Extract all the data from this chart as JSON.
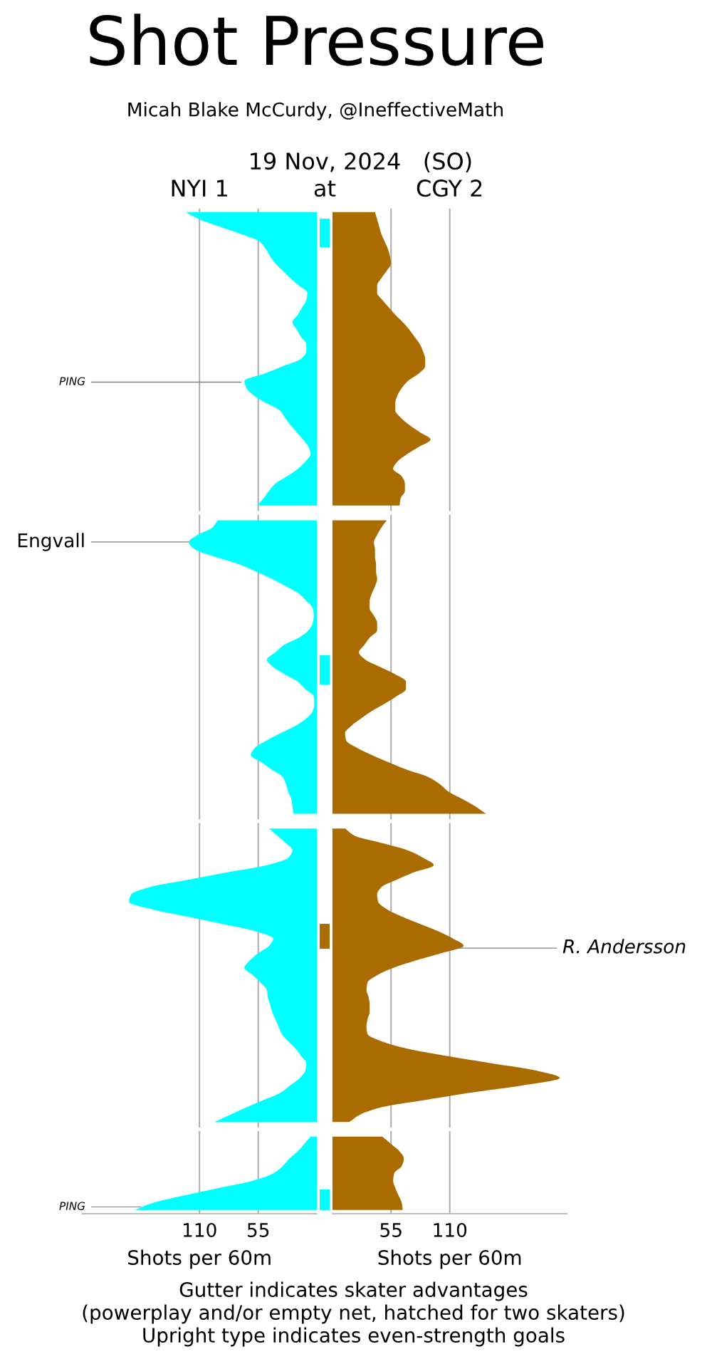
{
  "chart_data": [
    {
      "type": "area",
      "orientation": "horizontal",
      "title": "Shot Pressure",
      "subtitle": "Micah Blake McCurdy, @IneffectiveMath",
      "xlabel": "Shots per 60m",
      "categories": [
        null,
        null,
        null,
        null,
        null,
        null,
        null,
        null,
        null,
        null,
        null,
        null,
        null,
        null,
        null,
        null,
        null,
        null,
        null,
        null,
        null,
        null,
        null,
        null,
        null,
        null,
        null,
        null,
        null,
        null,
        null,
        null,
        null,
        null,
        null,
        null,
        null,
        null,
        null,
        null,
        null,
        null,
        null,
        null,
        null,
        null,
        null,
        null,
        null,
        null,
        null,
        null,
        null,
        null,
        null,
        null,
        null,
        null,
        null,
        null,
        null,
        null,
        null,
        null,
        null,
        null,
        null,
        null,
        null,
        null,
        null,
        null,
        null,
        null,
        null,
        null,
        null,
        null,
        null,
        null,
        null,
        null,
        null,
        null,
        null,
        null,
        null,
        null,
        null,
        null,
        null,
        null,
        null,
        null,
        null,
        null,
        null,
        null,
        null,
        null,
        null,
        null,
        null,
        null,
        null,
        null,
        null,
        null,
        null,
        null,
        null,
        null,
        null,
        null,
        null,
        null,
        null,
        null,
        null,
        null,
        null,
        null,
        null,
        null,
        null,
        null,
        null,
        null,
        null,
        null,
        null,
        null,
        null,
        null,
        null,
        null,
        null
      ],
      "series": [
        {
          "name": "NYI 1",
          "color": "#00ffff",
          "values": [
            123,
            110,
            91,
            71,
            54,
            48,
            44,
            39,
            32,
            25,
            17,
            9,
            10,
            14,
            18,
            23,
            19,
            15,
            10,
            10,
            15,
            32,
            49,
            68,
            66,
            59,
            48,
            35,
            30,
            25,
            19,
            13,
            8,
            6,
            11,
            18,
            28,
            39,
            45,
            50,
            56,
            null,
            93,
            98,
            112,
            120,
            114,
            95,
            73,
            57,
            42,
            29,
            17,
            10,
            4,
            3,
            4,
            8,
            17,
            31,
            39,
            47,
            41,
            30,
            18,
            11,
            3,
            2.5,
            4,
            10,
            20,
            34,
            47,
            58,
            62,
            52,
            42,
            32,
            29,
            27,
            24,
            23,
            22,
            null,
            45,
            37,
            29,
            23,
            27,
            47,
            85,
            121,
            157,
            174,
            176,
            155,
            122,
            89,
            58,
            41,
            45,
            55,
            63,
            68,
            60,
            53,
            47,
            46,
            44,
            42,
            39,
            36,
            33,
            27,
            20,
            15,
            10,
            11,
            16,
            25,
            34,
            50,
            66,
            81,
            96,
            null,
            6,
            12,
            18,
            26,
            32,
            41,
            60,
            92,
            124,
            153,
            171
          ]
        }
      ],
      "xlim": [
        220,
        0
      ],
      "xticks": [
        110,
        55
      ],
      "tick_labels": "x",
      "grid": "x",
      "annotations": [
        {
          "text": "PING",
          "x": 71
        },
        {
          "text": "Engvall",
          "x": 120
        },
        {
          "text": "PING",
          "x": 165
        },
        "19 Nov, 2024",
        "at",
        "Gutter indicates skater advantages",
        "(powerplay and/or empty net, hatched for two skaters)",
        "Upright type indicates even-strength goals"
      ]
    },
    {
      "type": "area",
      "orientation": "horizontal",
      "xlabel": "Shots per 60m",
      "categories": [
        null,
        null,
        null,
        null,
        null,
        null,
        null,
        null,
        null,
        null,
        null,
        null,
        null,
        null,
        null,
        null,
        null,
        null,
        null,
        null,
        null,
        null,
        null,
        null,
        null,
        null,
        null,
        null,
        null,
        null,
        null,
        null,
        null,
        null,
        null,
        null,
        null,
        null,
        null,
        null,
        null,
        null,
        null,
        null,
        null,
        null,
        null,
        null,
        null,
        null,
        null,
        null,
        null,
        null,
        null,
        null,
        null,
        null,
        null,
        null,
        null,
        null,
        null,
        null,
        null,
        null,
        null,
        null,
        null,
        null,
        null,
        null,
        null,
        null,
        null,
        null,
        null,
        null,
        null,
        null,
        null,
        null,
        null,
        null,
        null,
        null,
        null,
        null,
        null,
        null,
        null,
        null,
        null,
        null,
        null,
        null,
        null,
        null,
        null,
        null,
        null,
        null,
        null,
        null,
        null,
        null,
        null,
        null,
        null,
        null,
        null,
        null,
        null,
        null,
        null,
        null,
        null,
        null,
        null,
        null,
        null,
        null,
        null,
        null,
        null,
        null,
        null,
        null,
        null,
        null,
        null,
        null,
        null,
        null,
        null,
        null,
        null
      ],
      "series": [
        {
          "name": "CGY 2",
          "color": "#aa6c00",
          "values": [
            40,
            42,
            44,
            46,
            49,
            52,
            54,
            55,
            51,
            46,
            42,
            42,
            47,
            53,
            59,
            66,
            72,
            77,
            82,
            85,
            87,
            87,
            81,
            71,
            65,
            61,
            59,
            59,
            64,
            72,
            82,
            92,
            81,
            70,
            61,
            57,
            65,
            68,
            68,
            64,
            63,
            null,
            51,
            46,
            42,
            39,
            40,
            40,
            41,
            41,
            42,
            40,
            37,
            35,
            35,
            39,
            42,
            42,
            35,
            30,
            25,
            31,
            45,
            59,
            69,
            69,
            60,
            49,
            37,
            27,
            18,
            12,
            13,
            23,
            37,
            53,
            70,
            90,
            101,
            109,
            122,
            134,
            144,
            null,
            12,
            21,
            47,
            71,
            85,
            95,
            76,
            60,
            46,
            42,
            43,
            51,
            65,
            82,
            99,
            113,
            123,
            102,
            78,
            57,
            42,
            33,
            32,
            34,
            35,
            35,
            33,
            32,
            33,
            46,
            70,
            107,
            149,
            191,
            213,
            179,
            130,
            87,
            46,
            26,
            16,
            null,
            47,
            55,
            63,
            67,
            65,
            58,
            57,
            59,
            62,
            65,
            66
          ]
        }
      ],
      "xlim": [
        0,
        220
      ],
      "xticks": [
        55,
        110
      ],
      "tick_labels": "x",
      "grid": "x",
      "annotations": [
        {
          "text": "R. Andersson",
          "x": 118
        },
        "(SO)"
      ]
    }
  ]
}
